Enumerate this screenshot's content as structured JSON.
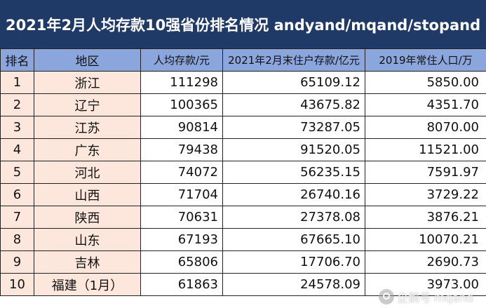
{
  "title": "2021年2月人均存款10强省份排名情况 andyand/mqand/stopand",
  "headers": [
    "排名",
    "地区",
    "人均存款/元",
    "2021年2月末住户存款/亿元",
    "2019年常住人口/万"
  ],
  "rows": [
    {
      "rank": "1",
      "region": "浙江",
      "per_capita": "111298",
      "deposits": "65109.12",
      "population": "5850.00"
    },
    {
      "rank": "2",
      "region": "辽宁",
      "per_capita": "100365",
      "deposits": "43675.82",
      "population": "4351.70"
    },
    {
      "rank": "3",
      "region": "江苏",
      "per_capita": "90814",
      "deposits": "73287.05",
      "population": "8070.00"
    },
    {
      "rank": "4",
      "region": "广东",
      "per_capita": "79438",
      "deposits": "91520.05",
      "population": "11521.00"
    },
    {
      "rank": "5",
      "region": "河北",
      "per_capita": "74072",
      "deposits": "56235.15",
      "population": "7591.97"
    },
    {
      "rank": "6",
      "region": "山西",
      "per_capita": "71704",
      "deposits": "26740.16",
      "population": "3729.22"
    },
    {
      "rank": "7",
      "region": "陕西",
      "per_capita": "70631",
      "deposits": "27378.08",
      "population": "3876.21"
    },
    {
      "rank": "8",
      "region": "山东",
      "per_capita": "67193",
      "deposits": "67665.10",
      "population": "10070.21"
    },
    {
      "rank": "9",
      "region": "吉林",
      "per_capita": "65806",
      "deposits": "17706.70",
      "population": "2690.73"
    },
    {
      "rank": "10",
      "region": "福建（1月）",
      "per_capita": "61863",
      "deposits": "24578.09",
      "population": "3973.00"
    }
  ],
  "watermark": "企鹅号 mqand",
  "colors": {
    "title_bg": "#1f3a66",
    "header_bg": "#8aa6dd",
    "label_cell_bg": "#fde6dc"
  }
}
